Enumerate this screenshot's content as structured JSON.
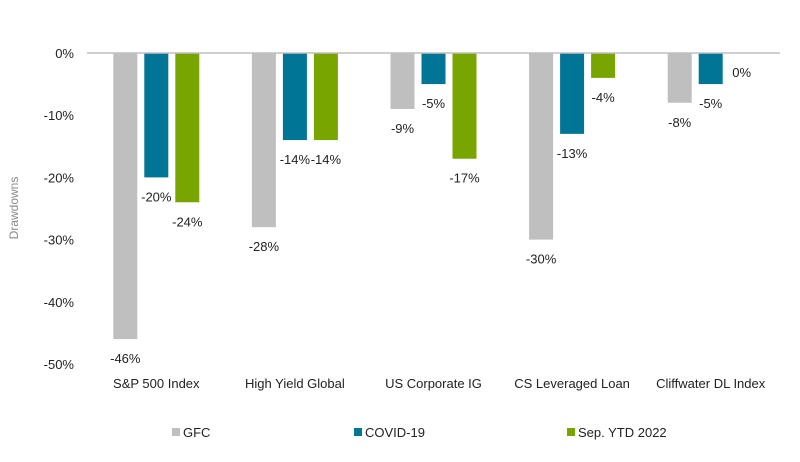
{
  "chart_data": {
    "type": "bar",
    "title": "",
    "xlabel": "",
    "ylabel": "Drawdowns",
    "ylim": [
      -50,
      0
    ],
    "yticks": [
      0,
      -10,
      -20,
      -30,
      -40,
      -50
    ],
    "ytick_labels": [
      "0%",
      "-10%",
      "-20%",
      "-30%",
      "-40%",
      "-50%"
    ],
    "grid": false,
    "legend_position": "bottom",
    "categories": [
      "S&P 500 Index",
      "High Yield Global",
      "US Corporate IG",
      "CS Leveraged Loan",
      "Cliffwater DL Index"
    ],
    "series": [
      {
        "name": "GFC",
        "color": "#bfbfbf",
        "values": [
          -46,
          -28,
          -9,
          -30,
          -8
        ],
        "labels": [
          "-46%",
          "-28%",
          "-9%",
          "-30%",
          "-8%"
        ]
      },
      {
        "name": "COVID-19",
        "color": "#007596",
        "values": [
          -20,
          -14,
          -5,
          -13,
          -5
        ],
        "labels": [
          "-20%",
          "-14%",
          "-5%",
          "-13%",
          "-5%"
        ]
      },
      {
        "name": "Sep. YTD 2022",
        "color": "#78a500",
        "values": [
          -24,
          -14,
          -17,
          -4,
          0
        ],
        "labels": [
          "-24%",
          "-14%",
          "-17%",
          "-4%",
          "0%"
        ]
      }
    ]
  }
}
